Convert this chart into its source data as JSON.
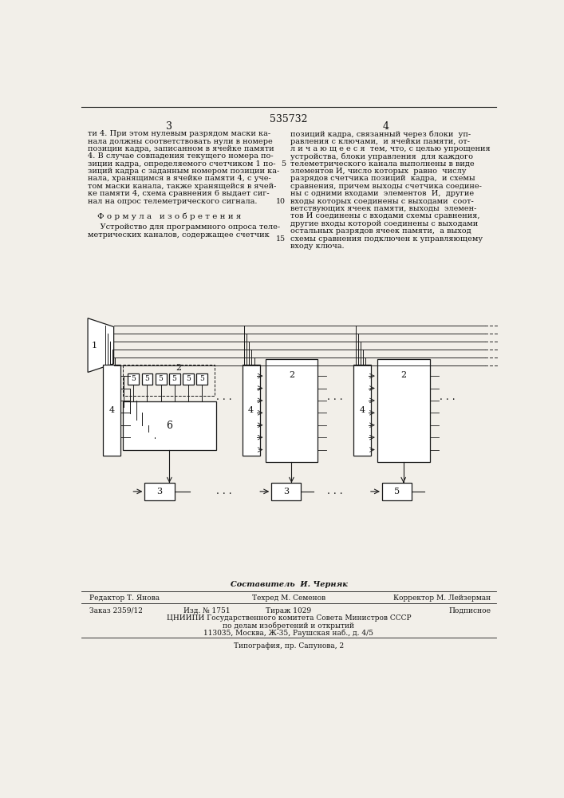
{
  "patent_number": "535732",
  "page_left": "3",
  "page_right": "4",
  "text_col1_lines": [
    "ти 4. При этом нулевым разрядом маски ка-",
    "нала должны соответствовать нули в номере",
    "позиции кадра, записанном в ячейке памяти",
    "4. В случае совпадения текущего номера по-",
    "зиции кадра, определяемого счетчиком 1 по-",
    "зиций кадра с заданным номером позиции ка-",
    "нала, хранящимся в ячейке памяти 4, с уче-",
    "том маски канала, также хранящейся в ячей-",
    "ке памяти 4, схема сравнения 6 выдает сиг-",
    "нал на опрос телеметрического сигнала."
  ],
  "formula_title": "Ф о р м у л а   и з о б р е т е н и я",
  "formula_text_lines": [
    "     Устройство для программного опроса теле-",
    "метрических каналов, содержащее счетчик"
  ],
  "text_col2_lines": [
    "позиций кадра, связанный через блоки  уп-",
    "равления с ключами,  и ячейки памяти, от-",
    "л и ч а ю щ е е с я  тем, что, с целью упрощения",
    "устройства, блоки управления  для каждого",
    "телеметрического канала выполнены в виде",
    "элементов И, число которых  равно  числу",
    "разрядов счетчика позиций  кадра,  и схемы",
    "сравнения, причем выходы счетчика соедине-",
    "ны с одними входами  элементов  И,  другие",
    "входы которых соединены с выходами  соот-",
    "ветствующих ячеек памяти, выходы  элемен-",
    "тов И соединены с входами схемы сравнения,",
    "другие входы которой соединены с выходами",
    "остальных разрядов ячеек памяти,  а выход",
    "схемы сравнения подключен к управляющему",
    "входу ключа."
  ],
  "footer_sestavitel": "Составитель  И. Черняк",
  "footer_editor": "Редактор Т. Янова",
  "footer_tehred": "Техред М. Семенов",
  "footer_korrektor": "Корректор М. Лейзерман",
  "footer_zakaz": "Заказ 2359/12",
  "footer_izd": "Изд. № 1751",
  "footer_tirazh": "Тираж 1029",
  "footer_podpisnoe": "Подписное",
  "footer_org": "ЦНИИПИ Государственного комитета Совета Министров СССР",
  "footer_org2": "по делам изобретений и открытий",
  "footer_addr": "113035, Москва, Ж-35, Раушская наб., д. 4/5",
  "footer_tipografia": "Типография, пр. Сапунова, 2",
  "bg_color": "#f2efe9",
  "line_color": "#1a1a1a",
  "text_color": "#111111"
}
